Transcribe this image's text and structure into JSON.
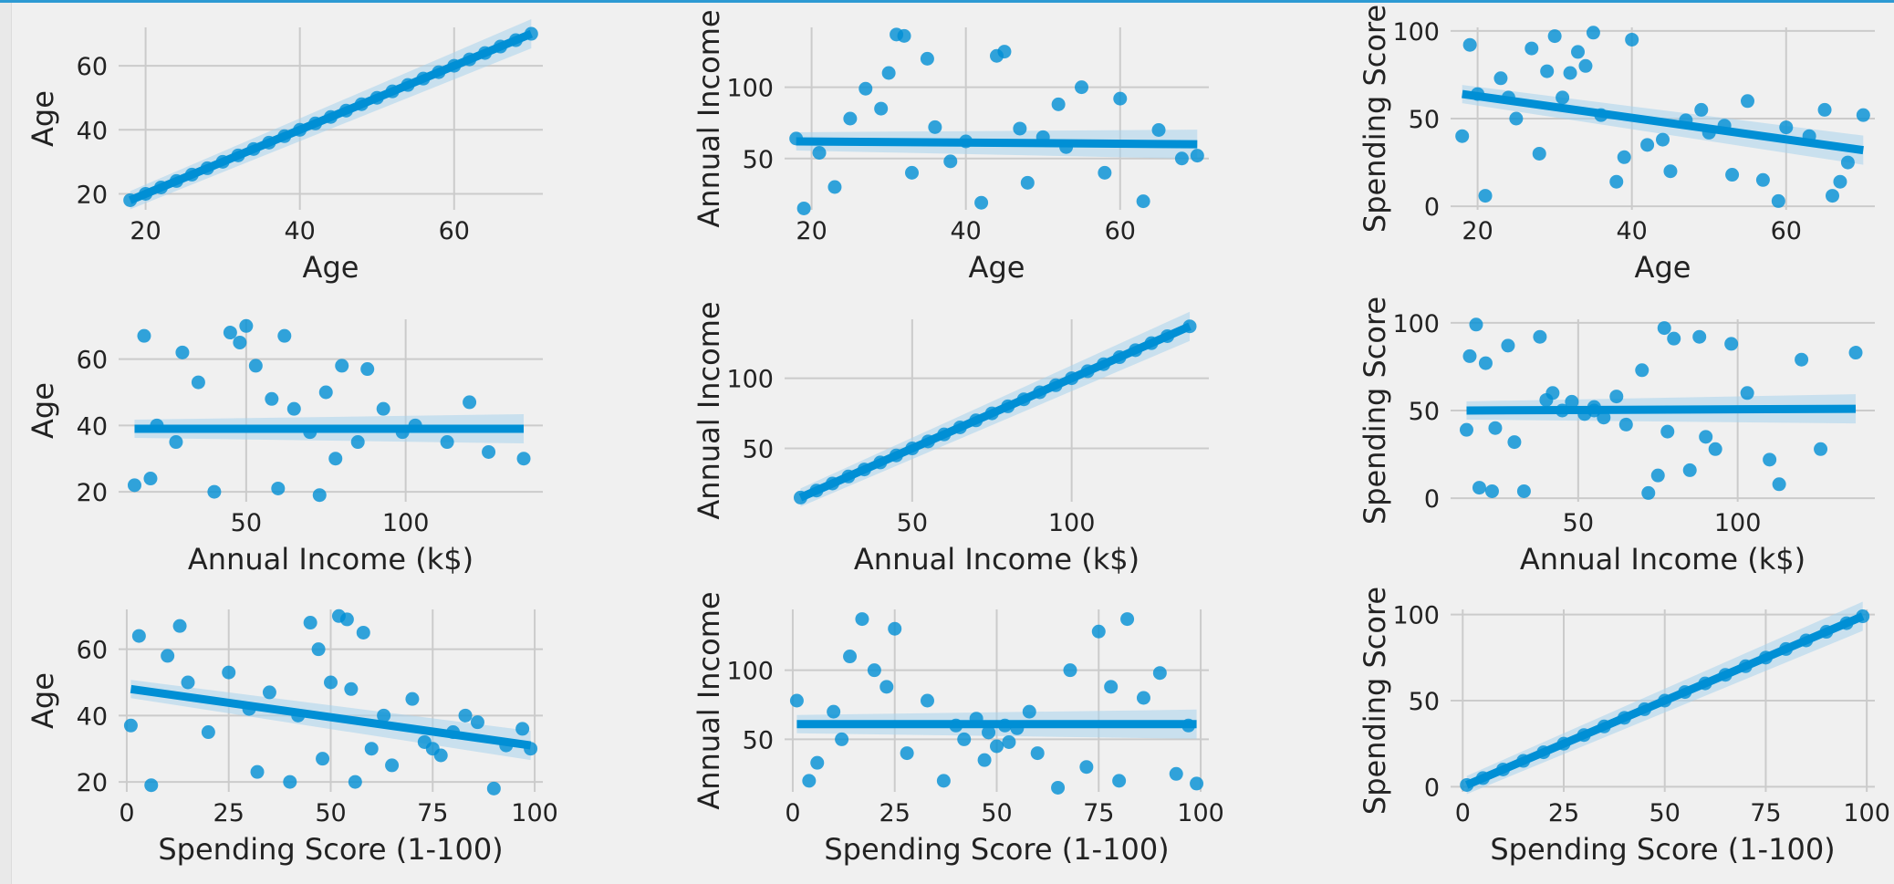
{
  "colors": {
    "background": "#f0f0f0",
    "grid": "#cbcbcb",
    "marker": "#008fd5",
    "band": "#a9d4ec",
    "text": "#222222"
  },
  "chart_data": [
    {
      "type": "scatter",
      "id": "age-age",
      "xlabel": "Age",
      "ylabel": "Age",
      "xlim": [
        16.5,
        71.5
      ],
      "ylim": [
        15,
        72
      ],
      "xticks": [
        "20",
        "40",
        "60"
      ],
      "yticks": [
        "20",
        "40",
        "60"
      ],
      "x": [
        18,
        20,
        22,
        24,
        26,
        28,
        30,
        32,
        34,
        36,
        38,
        40,
        42,
        44,
        46,
        48,
        50,
        52,
        54,
        56,
        58,
        60,
        62,
        64,
        66,
        68,
        70
      ],
      "y": [
        18,
        20,
        22,
        24,
        26,
        28,
        30,
        32,
        34,
        36,
        38,
        40,
        42,
        44,
        46,
        48,
        50,
        52,
        54,
        56,
        58,
        60,
        62,
        64,
        66,
        68,
        70
      ],
      "fit": [
        [
          18,
          18
        ],
        [
          70,
          70
        ]
      ]
    },
    {
      "type": "scatter",
      "id": "age-income",
      "xlabel": "Age",
      "ylabel": "Annual Income",
      "xlim": [
        16.5,
        71.5
      ],
      "ylim": [
        14,
        142
      ],
      "xticks": [
        "20",
        "40",
        "60"
      ],
      "yticks": [
        "50",
        "100"
      ],
      "x": [
        19,
        21,
        25,
        31,
        33,
        35,
        40,
        45,
        47,
        52,
        55,
        60,
        63,
        68,
        18,
        23,
        27,
        29,
        38,
        42,
        50,
        58,
        65,
        70,
        32,
        36,
        30,
        48,
        53,
        44
      ],
      "y": [
        15,
        54,
        78,
        137,
        40,
        120,
        62,
        125,
        71,
        88,
        100,
        92,
        20,
        50,
        64,
        30,
        99,
        85,
        48,
        19,
        65,
        40,
        70,
        52,
        136,
        72,
        110,
        33,
        58,
        122
      ],
      "fit": [
        [
          18,
          62
        ],
        [
          70,
          60
        ]
      ]
    },
    {
      "type": "scatter",
      "id": "age-spending",
      "xlabel": "Age",
      "ylabel": "Spending Score",
      "xlim": [
        16.5,
        71.5
      ],
      "ylim": [
        -2,
        102
      ],
      "xticks": [
        "20",
        "40",
        "60"
      ],
      "yticks": [
        "0",
        "50",
        "100"
      ],
      "x": [
        18,
        19,
        21,
        23,
        25,
        27,
        29,
        30,
        31,
        32,
        34,
        35,
        36,
        38,
        40,
        42,
        45,
        47,
        49,
        50,
        53,
        55,
        57,
        59,
        60,
        63,
        65,
        67,
        68,
        70,
        24,
        33,
        39,
        44,
        52,
        66,
        20,
        28
      ],
      "y": [
        40,
        92,
        6,
        73,
        50,
        90,
        77,
        97,
        62,
        76,
        80,
        99,
        52,
        14,
        95,
        35,
        20,
        49,
        55,
        42,
        18,
        60,
        15,
        3,
        45,
        40,
        55,
        14,
        25,
        52,
        62,
        88,
        28,
        38,
        46,
        6,
        64,
        30
      ],
      "fit": [
        [
          18,
          64
        ],
        [
          70,
          32
        ]
      ]
    },
    {
      "type": "scatter",
      "id": "income-age",
      "xlabel": "Annual Income (k$)",
      "ylabel": "Age",
      "xlim": [
        10,
        143
      ],
      "ylim": [
        17,
        72
      ],
      "xticks": [
        "50",
        "100"
      ],
      "yticks": [
        "20",
        "40",
        "60"
      ],
      "x": [
        15,
        18,
        22,
        28,
        35,
        40,
        45,
        48,
        53,
        58,
        60,
        65,
        70,
        75,
        78,
        80,
        85,
        88,
        93,
        99,
        103,
        113,
        120,
        126,
        137,
        20,
        30,
        50,
        62,
        73
      ],
      "y": [
        22,
        67,
        40,
        35,
        53,
        20,
        68,
        65,
        58,
        48,
        21,
        45,
        38,
        50,
        30,
        58,
        35,
        57,
        45,
        38,
        40,
        35,
        47,
        32,
        30,
        24,
        62,
        70,
        67,
        19
      ],
      "fit": [
        [
          15,
          39
        ],
        [
          137,
          39
        ]
      ]
    },
    {
      "type": "scatter",
      "id": "income-income",
      "xlabel": "Annual Income (k$)",
      "ylabel": "Annual Income",
      "xlim": [
        10,
        143
      ],
      "ylim": [
        12,
        142
      ],
      "xticks": [
        "50",
        "100"
      ],
      "yticks": [
        "50",
        "100"
      ],
      "x": [
        15,
        20,
        25,
        30,
        35,
        40,
        45,
        50,
        55,
        60,
        65,
        70,
        75,
        80,
        85,
        90,
        95,
        100,
        105,
        110,
        115,
        120,
        125,
        130,
        137
      ],
      "y": [
        15,
        20,
        25,
        30,
        35,
        40,
        45,
        50,
        55,
        60,
        65,
        70,
        75,
        80,
        85,
        90,
        95,
        100,
        105,
        110,
        115,
        120,
        125,
        130,
        137
      ],
      "fit": [
        [
          15,
          15
        ],
        [
          137,
          137
        ]
      ]
    },
    {
      "type": "scatter",
      "id": "income-spending",
      "xlabel": "Annual Income (k$)",
      "ylabel": "Spending Score",
      "xlim": [
        10,
        143
      ],
      "ylim": [
        -2,
        102
      ],
      "xticks": [
        "50",
        "100"
      ],
      "yticks": [
        "0",
        "50",
        "100"
      ],
      "x": [
        15,
        16,
        19,
        21,
        24,
        28,
        33,
        38,
        42,
        45,
        48,
        52,
        55,
        58,
        62,
        65,
        72,
        75,
        77,
        78,
        80,
        85,
        88,
        93,
        98,
        103,
        113,
        120,
        126,
        137,
        18,
        23,
        30,
        40,
        55,
        70,
        90,
        110
      ],
      "y": [
        39,
        81,
        6,
        77,
        40,
        87,
        4,
        92,
        60,
        50,
        55,
        48,
        52,
        46,
        58,
        42,
        3,
        13,
        97,
        38,
        91,
        16,
        92,
        28,
        88,
        60,
        8,
        79,
        28,
        83,
        99,
        4,
        32,
        56,
        50,
        73,
        35,
        22
      ],
      "fit": [
        [
          15,
          50
        ],
        [
          137,
          51
        ]
      ]
    },
    {
      "type": "scatter",
      "id": "spending-age",
      "xlabel": "Spending Score (1-100)",
      "ylabel": "Age",
      "xlim": [
        -2,
        102
      ],
      "ylim": [
        17,
        72
      ],
      "xticks": [
        "0",
        "25",
        "50",
        "75",
        "100"
      ],
      "yticks": [
        "20",
        "40",
        "60"
      ],
      "x": [
        1,
        3,
        6,
        13,
        15,
        20,
        25,
        32,
        35,
        40,
        42,
        45,
        47,
        50,
        52,
        55,
        56,
        58,
        60,
        63,
        65,
        70,
        73,
        75,
        80,
        83,
        86,
        90,
        93,
        97,
        99,
        10,
        30,
        48,
        54,
        77
      ],
      "y": [
        37,
        64,
        19,
        67,
        50,
        35,
        53,
        23,
        47,
        20,
        40,
        68,
        60,
        50,
        70,
        48,
        20,
        65,
        30,
        40,
        25,
        45,
        32,
        30,
        35,
        40,
        38,
        18,
        31,
        36,
        30,
        58,
        42,
        27,
        69,
        28
      ],
      "fit": [
        [
          1,
          48
        ],
        [
          99,
          31
        ]
      ]
    },
    {
      "type": "scatter",
      "id": "spending-income",
      "xlabel": "Spending Score (1-100)",
      "ylabel": "Annual Income",
      "xlim": [
        -2,
        102
      ],
      "ylim": [
        12,
        144
      ],
      "xticks": [
        "0",
        "25",
        "50",
        "75",
        "100"
      ],
      "yticks": [
        "50",
        "100"
      ],
      "x": [
        1,
        4,
        6,
        10,
        14,
        17,
        20,
        25,
        28,
        33,
        37,
        40,
        42,
        45,
        48,
        50,
        52,
        55,
        58,
        60,
        65,
        68,
        72,
        75,
        78,
        82,
        86,
        90,
        94,
        97,
        99,
        12,
        23,
        47,
        53,
        80
      ],
      "y": [
        78,
        20,
        33,
        70,
        110,
        137,
        100,
        130,
        40,
        78,
        20,
        60,
        50,
        65,
        55,
        45,
        60,
        58,
        70,
        40,
        15,
        100,
        30,
        128,
        88,
        137,
        80,
        98,
        25,
        60,
        18,
        50,
        88,
        35,
        48,
        20
      ],
      "fit": [
        [
          1,
          61
        ],
        [
          99,
          61
        ]
      ]
    },
    {
      "type": "scatter",
      "id": "spending-spending",
      "xlabel": "Spending Score (1-100)",
      "ylabel": "Spending Score",
      "xlim": [
        -3,
        102
      ],
      "ylim": [
        -3,
        103
      ],
      "xticks": [
        "0",
        "25",
        "50",
        "75",
        "100"
      ],
      "yticks": [
        "0",
        "50",
        "100"
      ],
      "x": [
        1,
        5,
        10,
        15,
        20,
        25,
        30,
        35,
        40,
        45,
        50,
        55,
        60,
        65,
        70,
        75,
        80,
        85,
        90,
        95,
        99
      ],
      "y": [
        1,
        5,
        10,
        15,
        20,
        25,
        30,
        35,
        40,
        45,
        50,
        55,
        60,
        65,
        70,
        75,
        80,
        85,
        90,
        95,
        99
      ],
      "fit": [
        [
          1,
          1
        ],
        [
          99,
          99
        ]
      ]
    }
  ]
}
